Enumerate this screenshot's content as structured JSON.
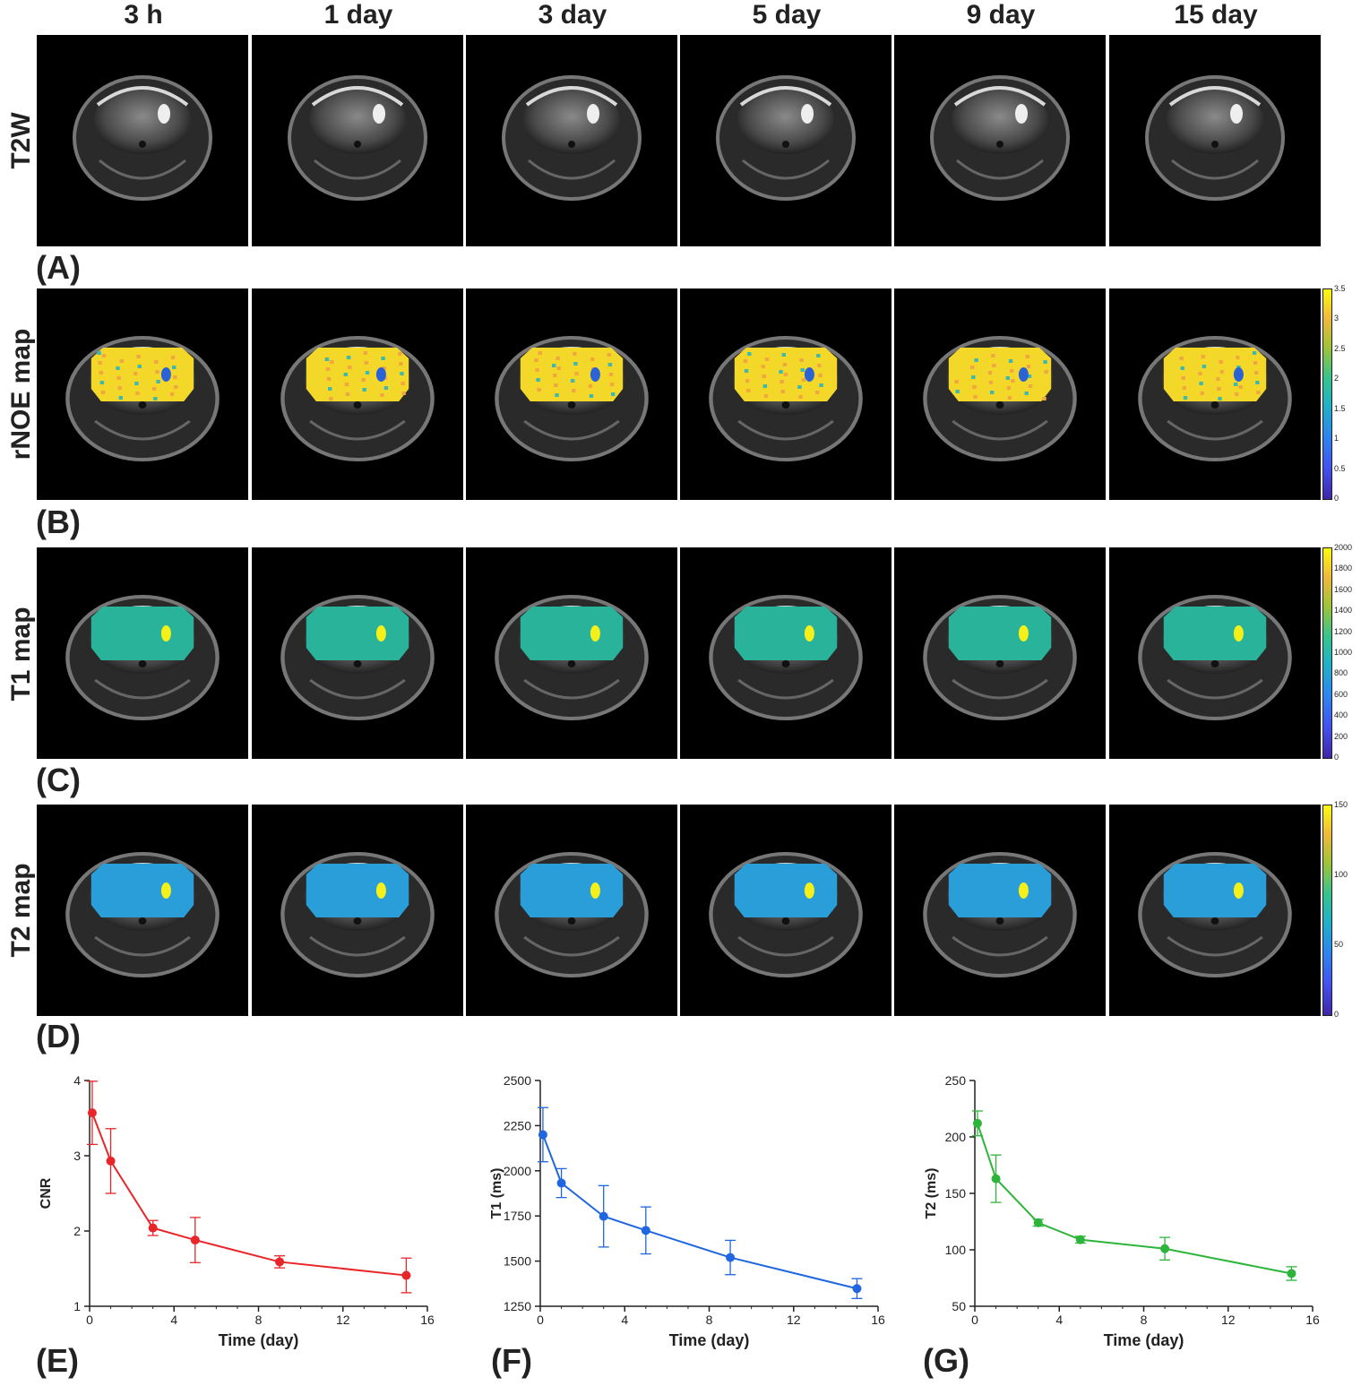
{
  "columns": [
    "3 h",
    "1 day",
    "3 day",
    "5 day",
    "9 day",
    "15 day"
  ],
  "rows": [
    {
      "label": "T2W",
      "panel": "(A)",
      "type": "gray",
      "colorbar": null
    },
    {
      "label": "rNOE map",
      "panel": "(B)",
      "type": "rnoe",
      "colorbar": {
        "ticks": [
          "3.5",
          "3",
          "2.5",
          "2",
          "1.5",
          "1",
          "0.5",
          "0"
        ]
      }
    },
    {
      "label": "T1 map",
      "panel": "(C)",
      "type": "t1",
      "colorbar": {
        "ticks": [
          "2000",
          "1800",
          "1600",
          "1400",
          "1200",
          "1000",
          "800",
          "600",
          "400",
          "200",
          "0"
        ]
      }
    },
    {
      "label": "T2 map",
      "panel": "(D)",
      "type": "t2",
      "colorbar": {
        "ticks": [
          "150",
          "100",
          "50",
          "0"
        ]
      }
    }
  ],
  "colors": {
    "parula_low": "#3e26a8",
    "parula_mid": "#1fb2c7",
    "parula_high": "#f9fb0e",
    "rnoe_fill": "#f3d82a",
    "t1_fill": "#29b39a",
    "t2_fill": "#2a9ed8",
    "lesion": "#f5f01a"
  },
  "chart_data": [
    {
      "type": "line",
      "panel": "(E)",
      "title": "",
      "xlabel": "Time (day)",
      "ylabel": "CNR",
      "color": "#e8262a",
      "x": [
        0.125,
        1,
        3,
        5,
        9,
        15
      ],
      "y": [
        3.57,
        2.93,
        2.04,
        1.88,
        1.59,
        1.41
      ],
      "err": [
        0.42,
        0.43,
        0.1,
        0.3,
        0.08,
        0.23
      ],
      "xlim": [
        0,
        16
      ],
      "ylim": [
        1,
        4
      ],
      "xticks": [
        0,
        4,
        8,
        12,
        16
      ],
      "yticks": [
        1,
        2,
        3,
        4
      ],
      "xtick_labels": [
        "0",
        "4",
        "8",
        "12",
        "16"
      ],
      "ytick_labels": [
        "1",
        "2",
        "3",
        "4"
      ]
    },
    {
      "type": "line",
      "panel": "(F)",
      "title": "",
      "xlabel": "Time (day)",
      "ylabel": "T1  (ms)",
      "color": "#1f66e0",
      "x": [
        0.125,
        1,
        3,
        5,
        9,
        15
      ],
      "y": [
        2200,
        1932,
        1748,
        1670,
        1520,
        1348
      ],
      "err": [
        150,
        80,
        170,
        130,
        95,
        55
      ],
      "xlim": [
        0,
        16
      ],
      "ylim": [
        1250,
        2500
      ],
      "xticks": [
        0,
        4,
        8,
        12,
        16
      ],
      "yticks": [
        1250,
        1500,
        1750,
        2000,
        2250,
        2500
      ],
      "xtick_labels": [
        "0",
        "4",
        "8",
        "12",
        "16"
      ],
      "ytick_labels": [
        "1250",
        "1500",
        "1750",
        "2000",
        "2250",
        "2500"
      ]
    },
    {
      "type": "line",
      "panel": "(G)",
      "title": "",
      "xlabel": "Time (day)",
      "ylabel": "T2 (ms)",
      "color": "#2cb53a",
      "x": [
        0.125,
        1,
        3,
        5,
        9,
        15
      ],
      "y": [
        212,
        163,
        124,
        109,
        101,
        79
      ],
      "err": [
        11,
        21,
        3,
        3,
        10,
        6
      ],
      "xlim": [
        0,
        16
      ],
      "ylim": [
        50,
        250
      ],
      "xticks": [
        0,
        4,
        8,
        12,
        16
      ],
      "yticks": [
        50,
        100,
        150,
        200,
        250
      ],
      "xtick_labels": [
        "0",
        "4",
        "8",
        "12",
        "16"
      ],
      "ytick_labels": [
        "50",
        "100",
        "150",
        "200",
        "250"
      ]
    }
  ]
}
